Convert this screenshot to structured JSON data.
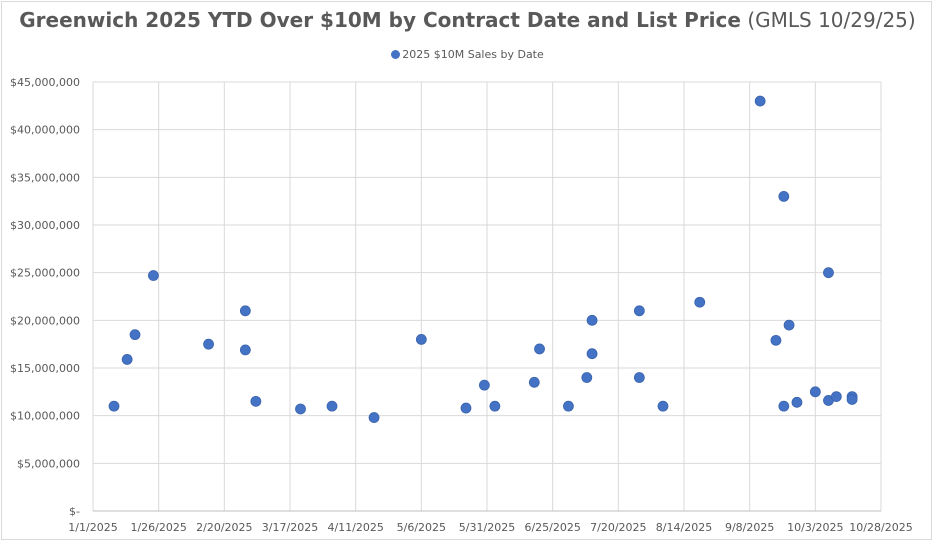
{
  "chart_data": {
    "type": "scatter",
    "title_bold": "Greenwich 2025 YTD Over $10M by Contract Date and List Price",
    "title_normal": "(GMLS 10/29/25)",
    "legend": "2025 $10M Sales by Date",
    "color": "#4472c4",
    "grid_color": "#d9d9d9",
    "x_ticks": [
      "1/1/2025",
      "1/26/2025",
      "2/20/2025",
      "3/17/2025",
      "4/11/2025",
      "5/6/2025",
      "5/31/2025",
      "6/25/2025",
      "7/20/2025",
      "8/14/2025",
      "9/8/2025",
      "10/3/2025",
      "10/28/2025"
    ],
    "x_range_days": [
      0,
      300
    ],
    "y_ticks": [
      "$-",
      "$5,000,000",
      "$10,000,000",
      "$15,000,000",
      "$20,000,000",
      "$25,000,000",
      "$30,000,000",
      "$35,000,000",
      "$40,000,000",
      "$45,000,000"
    ],
    "ylim": [
      0,
      45000000
    ],
    "points": [
      {
        "day": 8,
        "price": 11000000
      },
      {
        "day": 13,
        "price": 15900000
      },
      {
        "day": 16,
        "price": 18500000
      },
      {
        "day": 23,
        "price": 24700000
      },
      {
        "day": 44,
        "price": 17500000
      },
      {
        "day": 58,
        "price": 21000000
      },
      {
        "day": 58,
        "price": 16900000
      },
      {
        "day": 62,
        "price": 11500000
      },
      {
        "day": 79,
        "price": 10700000
      },
      {
        "day": 91,
        "price": 11000000
      },
      {
        "day": 107,
        "price": 9800000
      },
      {
        "day": 125,
        "price": 18000000
      },
      {
        "day": 142,
        "price": 10800000
      },
      {
        "day": 149,
        "price": 13200000
      },
      {
        "day": 153,
        "price": 11000000
      },
      {
        "day": 168,
        "price": 13500000
      },
      {
        "day": 170,
        "price": 17000000
      },
      {
        "day": 181,
        "price": 11000000
      },
      {
        "day": 188,
        "price": 14000000
      },
      {
        "day": 190,
        "price": 20000000
      },
      {
        "day": 190,
        "price": 16500000
      },
      {
        "day": 208,
        "price": 21000000
      },
      {
        "day": 208,
        "price": 14000000
      },
      {
        "day": 217,
        "price": 11000000
      },
      {
        "day": 231,
        "price": 21900000
      },
      {
        "day": 254,
        "price": 43000000
      },
      {
        "day": 260,
        "price": 17900000
      },
      {
        "day": 263,
        "price": 33000000
      },
      {
        "day": 263,
        "price": 11000000
      },
      {
        "day": 265,
        "price": 19500000
      },
      {
        "day": 268,
        "price": 11400000
      },
      {
        "day": 275,
        "price": 12500000
      },
      {
        "day": 280,
        "price": 11600000
      },
      {
        "day": 280,
        "price": 25000000
      },
      {
        "day": 283,
        "price": 12000000
      },
      {
        "day": 289,
        "price": 12000000
      },
      {
        "day": 289,
        "price": 11700000
      }
    ]
  }
}
